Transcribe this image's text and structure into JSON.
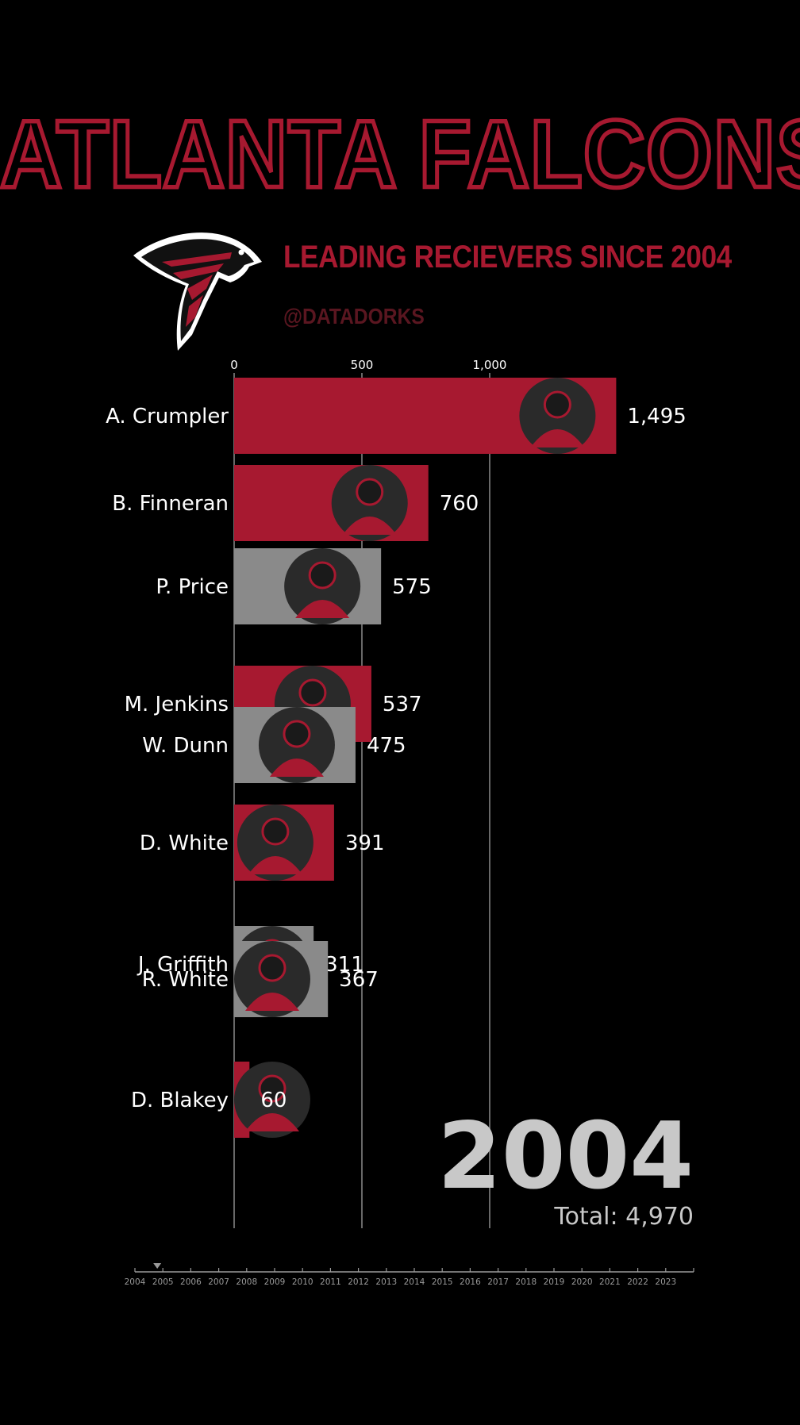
{
  "header": {
    "title": "ATLANTA FALCONS",
    "subtitle": "LEADING RECIEVERS SINCE 2004",
    "handle": "@DATADORKS"
  },
  "colors": {
    "background": "#000000",
    "falcons_red": "#a71930",
    "gray_bar": "#8a8a8a",
    "text": "#ffffff",
    "year_text": "#c8c8c8"
  },
  "current_year": "2004",
  "total_label": "Total: 4,970",
  "chart_data": {
    "type": "bar",
    "orientation": "horizontal",
    "x_ticks": [
      "0",
      "500",
      "1,000"
    ],
    "xlim": [
      0,
      1600
    ],
    "grid": true,
    "categories": [
      "A. Crumpler",
      "B. Finneran",
      "P. Price",
      "M. Jenkins",
      "W. Dunn",
      "D. White",
      "J. Griffith",
      "R. White",
      "D. Blakey"
    ],
    "values": [
      1495,
      760,
      575,
      537,
      475,
      391,
      311,
      367,
      60
    ],
    "value_labels": [
      "1,495",
      "760",
      "575",
      "537",
      "475",
      "391",
      "311",
      "367",
      "60"
    ],
    "bar_colors": [
      "#a71930",
      "#a71930",
      "#8a8a8a",
      "#a71930",
      "#8a8a8a",
      "#a71930",
      "#8a8a8a",
      "#8a8a8a",
      "#a71930"
    ]
  },
  "timeline": {
    "years": [
      "2004",
      "2005",
      "2006",
      "2007",
      "2008",
      "2009",
      "2010",
      "2011",
      "2012",
      "2013",
      "2014",
      "2015",
      "2016",
      "2017",
      "2018",
      "2019",
      "2020",
      "2021",
      "2022",
      "2023"
    ],
    "current_index": 0.8
  }
}
